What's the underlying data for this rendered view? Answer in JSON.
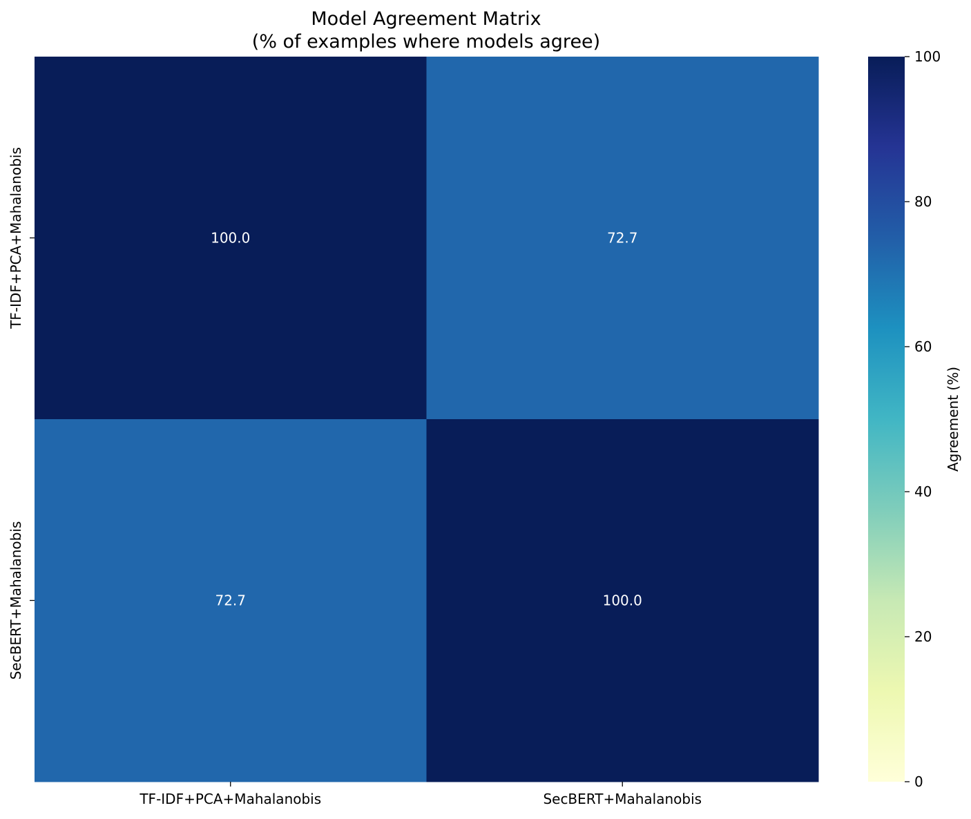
{
  "chart_data": {
    "type": "heatmap",
    "title_lines": [
      "Model Agreement Matrix",
      "(% of examples where models agree)"
    ],
    "x_categories": [
      "TF-IDF+PCA+Mahalanobis",
      "SecBERT+Mahalanobis"
    ],
    "y_categories": [
      "TF-IDF+PCA+Mahalanobis",
      "SecBERT+Mahalanobis"
    ],
    "values": [
      [
        100.0,
        72.7
      ],
      [
        72.7,
        100.0
      ]
    ],
    "value_format": "0.0",
    "colorbar": {
      "label": "Agreement (%)",
      "range": [
        0,
        100
      ],
      "ticks": [
        0,
        20,
        40,
        60,
        80,
        100
      ],
      "colormap": "YlGnBu",
      "stops": [
        "#ffffd9",
        "#edf8b1",
        "#c7e9b4",
        "#7fcdbb",
        "#41b6c4",
        "#1d91c0",
        "#225ea8",
        "#253494",
        "#081d58"
      ]
    },
    "annotation_color": "#ffffff",
    "grid": false
  }
}
